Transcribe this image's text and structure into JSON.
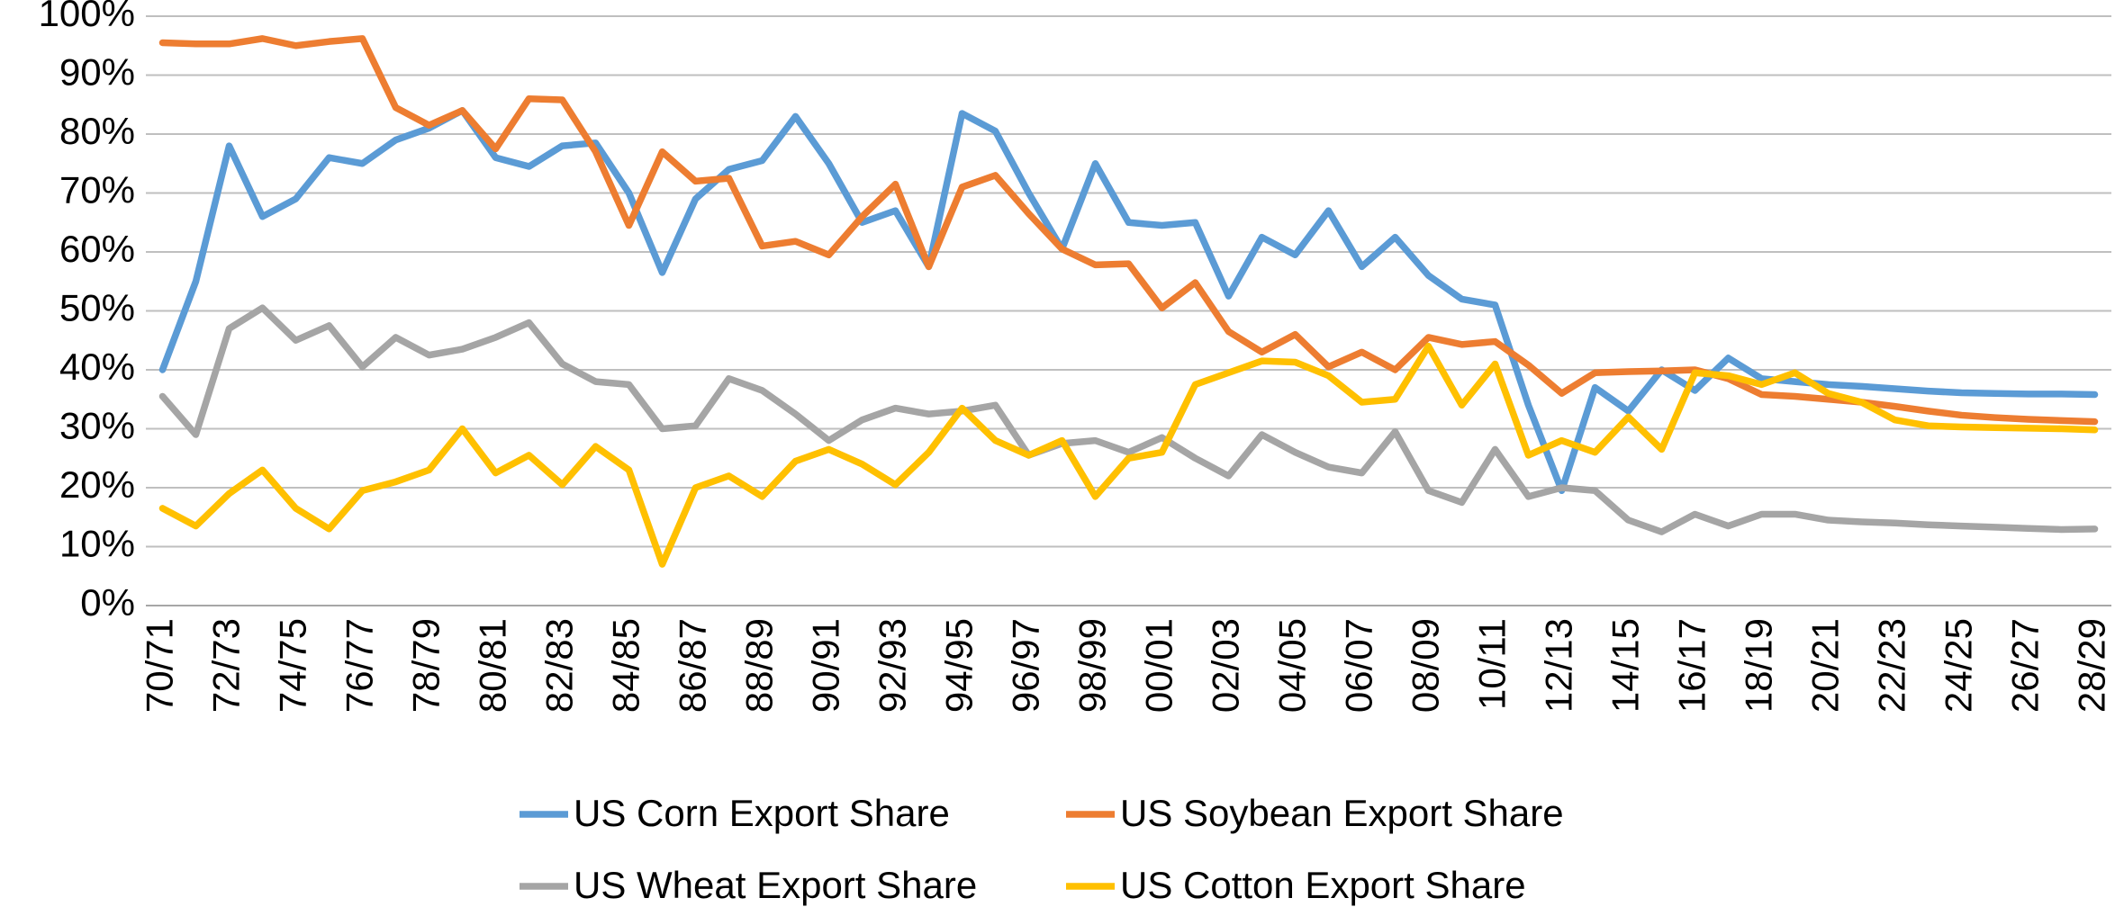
{
  "chart_data": {
    "type": "line",
    "categories": [
      "70/71",
      null,
      "72/73",
      null,
      "74/75",
      null,
      "76/77",
      null,
      "78/79",
      null,
      "80/81",
      null,
      "82/83",
      null,
      "84/85",
      null,
      "86/87",
      null,
      "88/89",
      null,
      "90/91",
      null,
      "92/93",
      null,
      "94/95",
      null,
      "96/97",
      null,
      "98/99",
      null,
      "00/01",
      null,
      "02/03",
      null,
      "04/05",
      null,
      "06/07",
      null,
      "08/09",
      null,
      "10/11",
      null,
      "12/13",
      null,
      "14/15",
      null,
      "16/17",
      null,
      "18/19",
      null,
      "20/21",
      null,
      "22/23",
      null,
      "24/25",
      null,
      "26/27",
      null,
      "28/29"
    ],
    "series": [
      {
        "name": "US Corn Export Share",
        "color": "#5b9bd5",
        "values": [
          40,
          55,
          78,
          66,
          69,
          76,
          75,
          79,
          81,
          84,
          76,
          74.5,
          78,
          78.5,
          70,
          56.5,
          69,
          74,
          75.5,
          83,
          75,
          65,
          67,
          57.5,
          83.5,
          80.5,
          70,
          60.5,
          75,
          65,
          64.5,
          65,
          52.5,
          62.5,
          59.5,
          67,
          57.5,
          62.5,
          56,
          52,
          51,
          34,
          19.5,
          37,
          33,
          40,
          36.5,
          42,
          38.5,
          38,
          37.5,
          37.2,
          36.8,
          36.4,
          36.1,
          36,
          35.9,
          35.9,
          35.8
        ]
      },
      {
        "name": "US Soybean Export Share",
        "color": "#ed7d31",
        "values": [
          95.5,
          95.3,
          95.3,
          96.2,
          95,
          95.7,
          96.2,
          84.5,
          81.5,
          84,
          77.5,
          86,
          85.8,
          77,
          64.5,
          77,
          72,
          72.5,
          61,
          61.8,
          59.5,
          66,
          71.5,
          57.5,
          71,
          73,
          66.5,
          60.5,
          57.8,
          58,
          50.5,
          54.8,
          46.5,
          43,
          46,
          40.5,
          43,
          40,
          45.5,
          44.3,
          44.8,
          40.8,
          36,
          39.5,
          39.7,
          39.8,
          40,
          38.5,
          35.8,
          35.5,
          35,
          34.5,
          33.8,
          33,
          32.3,
          31.9,
          31.6,
          31.4,
          31.2
        ]
      },
      {
        "name": "US Wheat Export Share",
        "color": "#a5a5a5",
        "values": [
          35.5,
          29,
          47,
          50.5,
          45,
          47.5,
          40.5,
          45.5,
          42.5,
          43.5,
          45.5,
          48,
          41,
          38,
          37.5,
          30,
          30.5,
          38.5,
          36.5,
          32.5,
          28,
          31.5,
          33.5,
          32.5,
          33,
          34,
          25.5,
          27.5,
          28,
          26,
          28.5,
          25,
          22,
          29,
          26,
          23.5,
          22.5,
          29.5,
          19.5,
          17.5,
          26.5,
          18.5,
          20,
          19.5,
          14.5,
          12.5,
          15.5,
          13.5,
          15.5,
          15.5,
          14.5,
          14.2,
          14,
          13.7,
          13.5,
          13.3,
          13.1,
          12.9,
          13
        ]
      },
      {
        "name": "US Cotton Export Share",
        "color": "#ffc000",
        "values": [
          16.5,
          13.5,
          19,
          23,
          16.5,
          13,
          19.5,
          21,
          23,
          30,
          22.5,
          25.5,
          20.5,
          27,
          23,
          7,
          20,
          22,
          18.5,
          24.5,
          26.5,
          24,
          20.5,
          26,
          33.5,
          28,
          25.5,
          28,
          18.5,
          25,
          26,
          37.5,
          39.5,
          41.5,
          41.3,
          39,
          34.5,
          35,
          44,
          34,
          41,
          25.5,
          28,
          26,
          32,
          26.5,
          39.5,
          39,
          37.5,
          39.5,
          36,
          34.5,
          31.5,
          30.5,
          30.3,
          30.2,
          30.1,
          30,
          29.8
        ]
      }
    ],
    "ylim": [
      0,
      100
    ],
    "yticks": [
      {
        "value": 0,
        "label": "0%"
      },
      {
        "value": 10,
        "label": "10%"
      },
      {
        "value": 20,
        "label": "20%"
      },
      {
        "value": 30,
        "label": "30%"
      },
      {
        "value": 40,
        "label": "40%"
      },
      {
        "value": 50,
        "label": "50%"
      },
      {
        "value": 60,
        "label": "60%"
      },
      {
        "value": 70,
        "label": "70%"
      },
      {
        "value": 80,
        "label": "80%"
      },
      {
        "value": 90,
        "label": "90%"
      },
      {
        "value": 100,
        "label": "100%"
      }
    ],
    "grid": true,
    "legend": "bottom"
  }
}
